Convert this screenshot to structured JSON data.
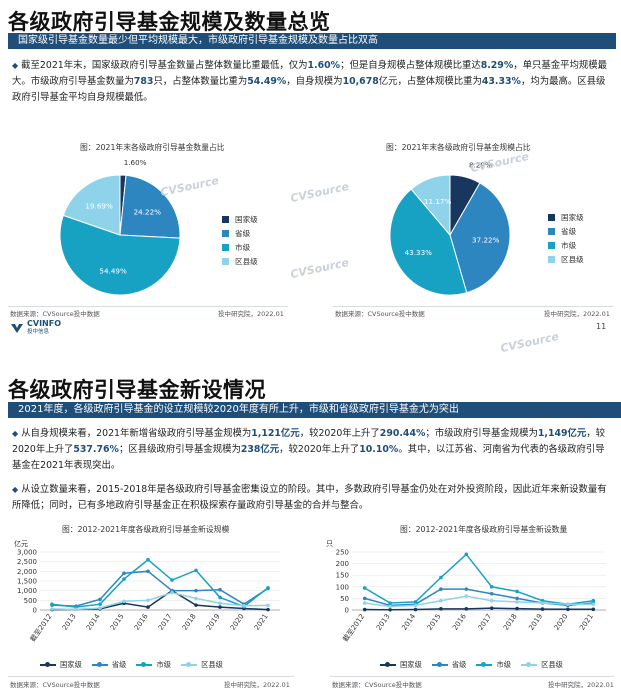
{
  "page1": {
    "title": "各级政府引导基金规模及数量总览",
    "banner": "国家级引导基金数量最少但平均规模最大，市级政府引导基金规模及数量占比双高",
    "para": {
      "t1": "截至2021年末，国家级政府引导基金数量占整体数量比重最低，仅为",
      "v1": "1.60%",
      "t2": "；但是自身规模占整体规模比重达",
      "v2": "8.29%",
      "t3": "，单只基金平均规模最大。市级政府引导基金数量为",
      "v3": "783",
      "t4": "只，占整体数量比重为",
      "v4": "54.49%",
      "t5": "，自身规模为",
      "v5": "10,678",
      "t6": "亿元，占整体规模比重为",
      "v6": "43.33%",
      "t7": "，均为最高。区县级政府引导基金平均自身规模最低。"
    },
    "chart_left": {
      "title": "图：2021年末各级政府引导基金数量占比",
      "source": "数据来源：CVSource投中数据",
      "credit": "投中研究院，2022.01"
    },
    "chart_right": {
      "title": "图：2021年末各级政府引导基金规模占比",
      "source": "数据来源：CVSource投中数据",
      "credit": "投中研究院，2022.01"
    },
    "legend": [
      "国家级",
      "省级",
      "市级",
      "区县级"
    ],
    "page_number": "11",
    "logo": "CVINFO",
    "logo_sub": "投中信息",
    "watermark": "CVSource"
  },
  "page2": {
    "title": "各级政府引导基金新设情况",
    "banner": "2021年度，各级政府引导基金的设立规模较2020年度有所上升，市级和省级政府引导基金尤为突出",
    "para1": {
      "t1": "从自身规模来看，2021年新增省级政府引导基金规模为",
      "v1": "1,121亿元",
      "t2": "，较2020年上升了",
      "v2": "290.44%",
      "t3": "；市级政府引导基金规模为",
      "v3": "1,149亿元",
      "t4": "，较2020年上升了",
      "v4": "537.76%",
      "t5": "；区县级政府引导基金规模为",
      "v5": "238亿元",
      "t6": "，较2020年上升了",
      "v6": "10.10%",
      "t7": "。其中，以江苏省、河南省为代表的各级政府引导基金在2021年表现突出。"
    },
    "para2": "从设立数量来看，2015-2018年是各级政府引导基金密集设立的阶段。其中，多数政府引导基金仍处在对外投资阶段，因此近年来新设数量有所降低；同时，已有多地政府引导基金正在积极探索存量政府引导基金的合并与整合。",
    "chart_left": {
      "title": "图：2012-2021年度各级政府引导基金新设规模",
      "unit": "亿元",
      "source": "数据来源：CVSource投中数据",
      "credit": "投中研究院，2022.01"
    },
    "chart_right": {
      "title": "图：2012-2021年度各级政府引导基金新设数量",
      "unit": "只",
      "source": "数据来源：CVSource投中数据",
      "credit": "投中研究院，2022.01"
    },
    "legend": [
      "国家级",
      "省级",
      "市级",
      "区县级"
    ]
  },
  "colors": {
    "national": "#17375e",
    "provincial": "#2e86c1",
    "city": "#17a2c4",
    "county": "#8fd3ea",
    "navy": "#1f4e79"
  },
  "chart_data": [
    {
      "type": "pie",
      "title": "图：2021年末各级政府引导基金数量占比",
      "categories": [
        "国家级",
        "省级",
        "市级",
        "区县级"
      ],
      "values": [
        1.6,
        24.22,
        54.49,
        19.69
      ],
      "labels": [
        "1.60%",
        "24.22%",
        "54.49%",
        "19.69%"
      ]
    },
    {
      "type": "pie",
      "title": "图：2021年末各级政府引导基金规模占比",
      "categories": [
        "国家级",
        "省级",
        "市级",
        "区县级"
      ],
      "values": [
        8.29,
        37.22,
        43.33,
        11.17
      ],
      "labels": [
        "8.29%",
        "37.22%",
        "43.33%",
        "11.17%"
      ]
    },
    {
      "type": "line",
      "title": "图：2012-2021年度各级政府引导基金新设规模",
      "ylabel": "亿元",
      "ylim": [
        0,
        3000
      ],
      "yticks": [
        "0",
        "500",
        "1,000",
        "1,500",
        "2,000",
        "2,500",
        "3,000"
      ],
      "categories": [
        "截至2012",
        "2013",
        "2014",
        "2015",
        "2016",
        "2017",
        "2018",
        "2019",
        "2020",
        "2021"
      ],
      "series": [
        {
          "name": "国家级",
          "values": [
            20,
            30,
            60,
            350,
            150,
            1000,
            250,
            150,
            80,
            20
          ]
        },
        {
          "name": "省级",
          "values": [
            250,
            200,
            550,
            1900,
            2000,
            1000,
            1000,
            1050,
            300,
            1121
          ]
        },
        {
          "name": "市级",
          "values": [
            300,
            150,
            300,
            1600,
            2600,
            1550,
            2050,
            650,
            180,
            1149
          ]
        },
        {
          "name": "区县级",
          "values": [
            50,
            30,
            100,
            450,
            500,
            900,
            600,
            350,
            220,
            238
          ]
        }
      ]
    },
    {
      "type": "line",
      "title": "图：2012-2021年度各级政府引导基金新设数量",
      "ylabel": "只",
      "ylim": [
        0,
        250
      ],
      "yticks": [
        "0",
        "50",
        "100",
        "150",
        "200",
        "250"
      ],
      "categories": [
        "截至2012",
        "2013",
        "2014",
        "2015",
        "2016",
        "2017",
        "2018",
        "2019",
        "2020",
        "2021"
      ],
      "series": [
        {
          "name": "国家级",
          "values": [
            2,
            1,
            2,
            5,
            5,
            8,
            6,
            4,
            3,
            3
          ]
        },
        {
          "name": "省级",
          "values": [
            50,
            20,
            25,
            90,
            90,
            70,
            50,
            30,
            20,
            30
          ]
        },
        {
          "name": "市级",
          "values": [
            95,
            30,
            35,
            140,
            240,
            100,
            80,
            40,
            25,
            40
          ]
        },
        {
          "name": "区县级",
          "values": [
            30,
            15,
            20,
            40,
            60,
            40,
            35,
            30,
            25,
            25
          ]
        }
      ]
    }
  ]
}
